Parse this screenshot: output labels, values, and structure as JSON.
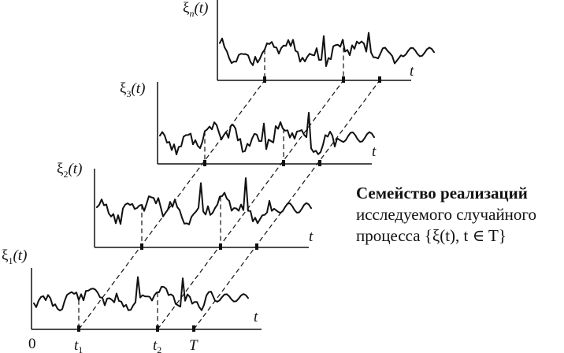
{
  "axes": {
    "n": {
      "y_label_base": "ξ",
      "y_label_sub": "n",
      "y_label_arg": "(t)",
      "x_label": "t"
    },
    "3": {
      "y_label_base": "ξ",
      "y_label_sub": "3",
      "y_label_arg": "(t)",
      "x_label": "t"
    },
    "2": {
      "y_label_base": "ξ",
      "y_label_sub": "2",
      "y_label_arg": "(t)",
      "x_label": "t"
    },
    "1": {
      "y_label_base": "ξ",
      "y_label_sub": "1",
      "y_label_arg": "(t)",
      "x_label": "t"
    }
  },
  "bottom_labels": {
    "origin": "0",
    "t1_base": "t",
    "t1_sub": "1",
    "t2_base": "t",
    "t2_sub": "2",
    "T": "T"
  },
  "caption": {
    "line1": "Семейство реализаций",
    "line2": "исследуемого случайного",
    "line3": "процесса {ξ(t), t ∈ T}"
  }
}
